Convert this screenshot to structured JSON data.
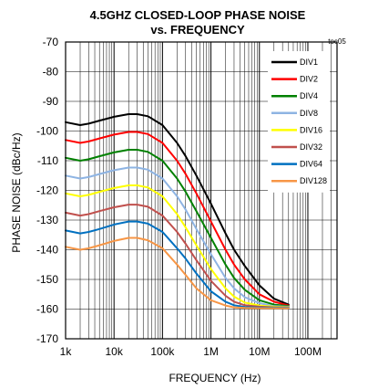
{
  "chart_data": {
    "type": "line",
    "title_line1": "4.5GHZ CLOSED-LOOP PHASE NOISE",
    "title_line2": "vs. FREQUENCY",
    "figure_tag": "toc05",
    "xlabel": "FREQUENCY (Hz)",
    "ylabel": "PHASE NOISE (dBc/Hz)",
    "x_scale": "log",
    "xlim": [
      1000,
      400000000
    ],
    "ylim": [
      -170,
      -70
    ],
    "x_ticks": [
      {
        "value": 1000,
        "label": "1k"
      },
      {
        "value": 10000,
        "label": "10k"
      },
      {
        "value": 100000,
        "label": "100k"
      },
      {
        "value": 1000000,
        "label": "1M"
      },
      {
        "value": 10000000,
        "label": "10M"
      },
      {
        "value": 100000000,
        "label": "100M"
      }
    ],
    "y_ticks": [
      {
        "value": -70,
        "label": "-70"
      },
      {
        "value": -80,
        "label": "-80"
      },
      {
        "value": -90,
        "label": "-90"
      },
      {
        "value": -100,
        "label": "-100"
      },
      {
        "value": -110,
        "label": "-110"
      },
      {
        "value": -120,
        "label": "-120"
      },
      {
        "value": -130,
        "label": "-130"
      },
      {
        "value": -140,
        "label": "-140"
      },
      {
        "value": -150,
        "label": "-150"
      },
      {
        "value": -160,
        "label": "-160"
      },
      {
        "value": -170,
        "label": "-170"
      }
    ],
    "grid": true,
    "legend_position": "top-right",
    "x": [
      1000,
      2000,
      3000,
      5000,
      10000,
      20000,
      30000,
      50000,
      100000,
      200000,
      300000,
      500000,
      1000000,
      2000000,
      3000000,
      5000000,
      10000000,
      20000000,
      40000000
    ],
    "series": [
      {
        "name": "DIV1",
        "color": "#000000",
        "values": [
          -97.0,
          -98.0,
          -97.5,
          -96.5,
          -95.2,
          -94.3,
          -94.3,
          -95.0,
          -98.0,
          -104.0,
          -108.5,
          -115.0,
          -124.5,
          -134.5,
          -140.0,
          -145.5,
          -152.0,
          -156.5,
          -158.5
        ]
      },
      {
        "name": "DIV2",
        "color": "#ff0000",
        "values": [
          -103.0,
          -104.0,
          -103.5,
          -102.5,
          -101.2,
          -100.3,
          -100.3,
          -101.0,
          -104.0,
          -110.0,
          -114.5,
          -121.0,
          -130.5,
          -140.0,
          -145.0,
          -150.0,
          -155.0,
          -157.5,
          -158.8
        ]
      },
      {
        "name": "DIV4",
        "color": "#008000",
        "values": [
          -109.0,
          -110.0,
          -109.5,
          -108.5,
          -107.2,
          -106.3,
          -106.3,
          -107.0,
          -110.0,
          -116.0,
          -120.5,
          -127.0,
          -136.0,
          -145.0,
          -149.5,
          -153.5,
          -157.0,
          -158.5,
          -159.0
        ]
      },
      {
        "name": "DIV8",
        "color": "#8eb4e3",
        "values": [
          -115.0,
          -116.0,
          -115.5,
          -114.5,
          -113.2,
          -112.3,
          -112.3,
          -113.0,
          -116.0,
          -122.0,
          -126.5,
          -133.0,
          -141.5,
          -149.5,
          -153.0,
          -156.0,
          -158.0,
          -159.0,
          -159.2
        ]
      },
      {
        "name": "DIV16",
        "color": "#ffff00",
        "values": [
          -121.0,
          -122.0,
          -121.5,
          -120.5,
          -119.2,
          -118.3,
          -118.3,
          -119.0,
          -122.0,
          -128.0,
          -132.5,
          -138.5,
          -146.5,
          -153.0,
          -155.8,
          -157.8,
          -158.8,
          -159.2,
          -159.3
        ]
      },
      {
        "name": "DIV32",
        "color": "#c0504d",
        "values": [
          -127.5,
          -128.5,
          -128.0,
          -127.0,
          -125.7,
          -124.8,
          -124.8,
          -125.5,
          -128.5,
          -134.0,
          -138.0,
          -143.5,
          -150.5,
          -155.5,
          -157.5,
          -158.7,
          -159.2,
          -159.4,
          -159.4
        ]
      },
      {
        "name": "DIV64",
        "color": "#0070c0",
        "values": [
          -133.5,
          -134.5,
          -134.0,
          -133.0,
          -131.5,
          -130.5,
          -130.5,
          -131.2,
          -134.0,
          -139.5,
          -143.0,
          -148.0,
          -154.0,
          -157.5,
          -158.7,
          -159.3,
          -159.5,
          -159.5,
          -159.5
        ]
      },
      {
        "name": "DIV128",
        "color": "#f79646",
        "values": [
          -139.0,
          -140.0,
          -139.5,
          -138.5,
          -137.0,
          -136.0,
          -136.0,
          -136.8,
          -139.5,
          -145.0,
          -148.5,
          -153.0,
          -157.0,
          -158.8,
          -159.4,
          -159.6,
          -159.7,
          -159.7,
          -159.7
        ]
      }
    ]
  }
}
